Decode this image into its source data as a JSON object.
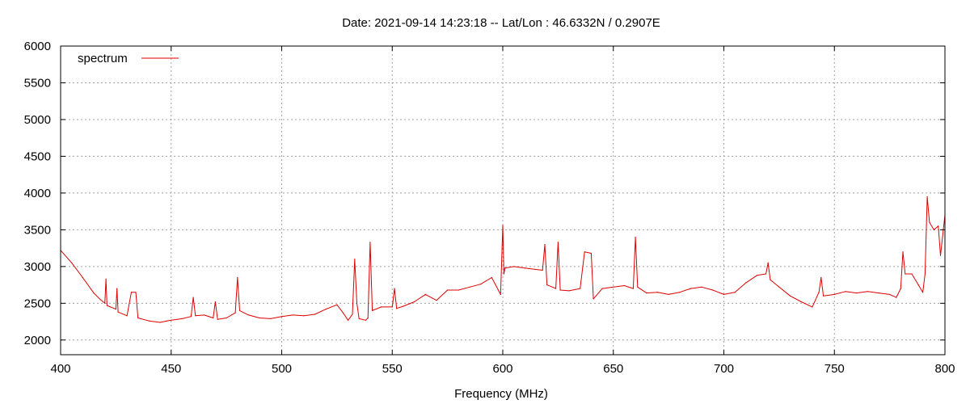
{
  "chart_data": {
    "type": "line",
    "title": "Date: 2021-09-14 14:23:18  --  Lat/Lon : 46.6332N / 0.2907E",
    "xlabel": "Frequency (MHz)",
    "ylabel": "",
    "xlim": [
      400,
      800
    ],
    "ylim": [
      1800,
      6000
    ],
    "xticks": [
      400,
      450,
      500,
      550,
      600,
      650,
      700,
      750,
      800
    ],
    "yticks": [
      2000,
      2500,
      3000,
      3500,
      4000,
      4500,
      5000,
      5500,
      6000
    ],
    "grid": true,
    "legend_position": "top-left",
    "series": [
      {
        "name": "spectrum",
        "color": "#dd0000",
        "x": [
          400,
          405,
          410,
          415,
          418,
          420,
          420.5,
          421,
          425,
          425.5,
          426,
          430,
          432,
          434,
          435,
          440,
          445,
          448,
          450,
          455,
          459,
          460,
          461,
          465,
          469,
          470,
          471,
          475,
          479,
          480,
          481,
          485,
          490,
          495,
          500,
          505,
          510,
          515,
          520,
          525,
          528,
          530,
          532,
          533,
          534,
          535,
          538,
          539,
          540,
          541,
          545,
          550,
          551,
          552,
          555,
          560,
          565,
          570,
          575,
          580,
          585,
          590,
          595,
          599,
          600,
          600.5,
          601,
          605,
          610,
          615,
          618,
          619,
          620,
          624,
          625,
          626,
          630,
          635,
          637,
          640,
          641,
          645,
          650,
          655,
          659,
          660,
          661,
          665,
          670,
          675,
          680,
          685,
          690,
          695,
          700,
          705,
          710,
          715,
          719,
          720,
          721,
          725,
          730,
          735,
          740,
          743,
          744,
          745,
          750,
          755,
          760,
          765,
          770,
          775,
          778,
          780,
          781,
          782,
          785,
          788,
          790,
          791,
          792,
          793,
          795,
          797,
          798,
          800
        ],
        "values": [
          3220,
          3050,
          2850,
          2640,
          2550,
          2500,
          2830,
          2470,
          2420,
          2700,
          2380,
          2330,
          2650,
          2650,
          2300,
          2260,
          2240,
          2260,
          2270,
          2290,
          2320,
          2580,
          2330,
          2340,
          2300,
          2520,
          2280,
          2300,
          2370,
          2850,
          2400,
          2340,
          2300,
          2290,
          2320,
          2340,
          2330,
          2350,
          2420,
          2480,
          2360,
          2270,
          2350,
          3100,
          2500,
          2290,
          2270,
          2300,
          3330,
          2400,
          2450,
          2450,
          2700,
          2430,
          2460,
          2520,
          2620,
          2540,
          2680,
          2680,
          2720,
          2760,
          2850,
          2620,
          3560,
          2900,
          2980,
          3000,
          2980,
          2960,
          2950,
          3300,
          2750,
          2700,
          3330,
          2680,
          2670,
          2700,
          3200,
          3180,
          2560,
          2700,
          2720,
          2740,
          2700,
          3400,
          2720,
          2640,
          2650,
          2620,
          2650,
          2700,
          2720,
          2680,
          2620,
          2650,
          2780,
          2880,
          2900,
          3050,
          2820,
          2720,
          2600,
          2520,
          2450,
          2650,
          2850,
          2600,
          2620,
          2660,
          2640,
          2660,
          2640,
          2620,
          2580,
          2700,
          3200,
          2900,
          2900,
          2750,
          2650,
          2900,
          3950,
          3600,
          3500,
          3550,
          3150,
          3700
        ]
      }
    ]
  }
}
